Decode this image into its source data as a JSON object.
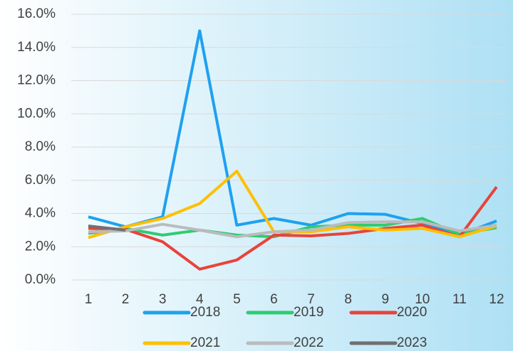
{
  "chart_data": {
    "type": "line",
    "categories": [
      "1",
      "2",
      "3",
      "4",
      "5",
      "6",
      "7",
      "8",
      "9",
      "10",
      "11",
      "12"
    ],
    "series": [
      {
        "name": "2018",
        "color": "#1ea1f0",
        "values": [
          3.8,
          3.2,
          3.8,
          15.0,
          3.3,
          3.7,
          3.3,
          4.0,
          3.95,
          3.4,
          2.7,
          3.55
        ]
      },
      {
        "name": "2019",
        "color": "#2ecc71",
        "values": [
          2.8,
          3.1,
          2.7,
          3.0,
          2.7,
          2.6,
          3.2,
          3.3,
          3.3,
          3.7,
          2.75,
          3.15
        ]
      },
      {
        "name": "2020",
        "color": "#e8433a",
        "values": [
          3.1,
          3.05,
          2.3,
          0.65,
          1.2,
          2.7,
          2.65,
          2.8,
          3.1,
          3.3,
          2.6,
          5.6
        ]
      },
      {
        "name": "2021",
        "color": "#ffbf00",
        "values": [
          2.55,
          3.2,
          3.7,
          4.6,
          6.55,
          2.9,
          2.9,
          3.2,
          3.0,
          3.1,
          2.6,
          3.25
        ]
      },
      {
        "name": "2022",
        "color": "#bbbbbb",
        "values": [
          2.9,
          2.95,
          3.35,
          3.0,
          2.6,
          2.9,
          3.0,
          3.45,
          3.5,
          3.5,
          2.95,
          3.3
        ]
      },
      {
        "name": "2023",
        "color": "#707070",
        "values": [
          3.25,
          3.0,
          null,
          null,
          null,
          null,
          null,
          null,
          null,
          null,
          null,
          null
        ]
      }
    ],
    "ylim": [
      0,
      16
    ],
    "yticks": [
      {
        "value": 0,
        "label": "0.0%"
      },
      {
        "value": 2,
        "label": "2.0%"
      },
      {
        "value": 4,
        "label": "4.0%"
      },
      {
        "value": 6,
        "label": "6.0%"
      },
      {
        "value": 8,
        "label": "8.0%"
      },
      {
        "value": 10,
        "label": "10.0%"
      },
      {
        "value": 12,
        "label": "12.0%"
      },
      {
        "value": 14,
        "label": "14.0%"
      },
      {
        "value": 16,
        "label": "16.0%"
      }
    ],
    "grid": true,
    "legend": "bottom"
  }
}
